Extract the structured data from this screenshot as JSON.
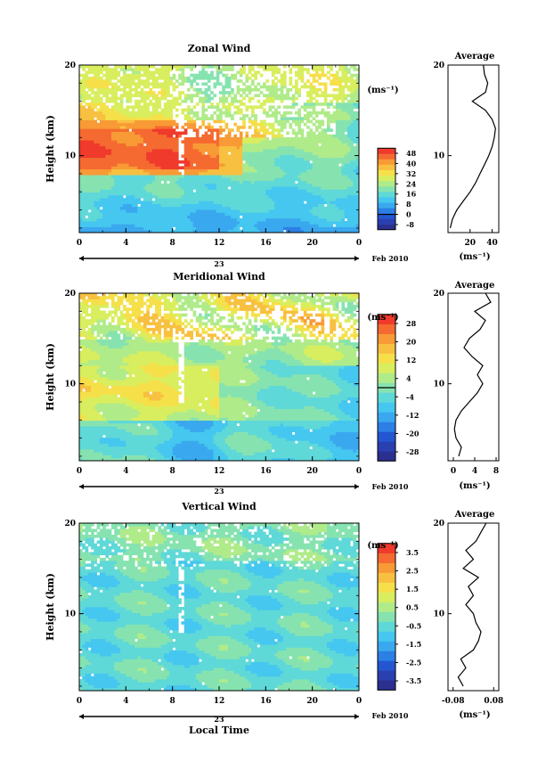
{
  "labels": {
    "cbar_unit": "(ms⁻¹)",
    "avg_unit": "(ms⁻¹)",
    "date_day": "23",
    "date_month": "Feb 2010",
    "x_axis_title": "Local Time",
    "y_axis_title": "Height (km)"
  },
  "colorscale": [
    "#2b2f8f",
    "#2a3fb0",
    "#2356d0",
    "#2c7fe4",
    "#3aa8ee",
    "#45c7f0",
    "#5fd8d8",
    "#86e3b0",
    "#b0eb8a",
    "#d9ee5e",
    "#f5e04a",
    "#f8c040",
    "#f89a35",
    "#f56a30",
    "#ef3a2c"
  ],
  "chart_data": [
    {
      "type": "heatmap",
      "title": "Zonal Wind",
      "x_ticks": [
        "0",
        "4",
        "8",
        "12",
        "16",
        "20",
        "0"
      ],
      "xlim": [
        0,
        24
      ],
      "y_ticks": [
        "10",
        "20"
      ],
      "ylim": [
        1.5,
        20
      ],
      "colorbar_ticks": [
        "48",
        "40",
        "32",
        "24",
        "16",
        "8",
        "0",
        "-8"
      ],
      "colorbar_range": [
        -12,
        52
      ],
      "contour_level": 0,
      "profile": {
        "title": "Average",
        "x_ticks": [
          "20",
          "40"
        ],
        "xlim": [
          0,
          46
        ],
        "heights": [
          2,
          3,
          4,
          5,
          6,
          7,
          8,
          9,
          10,
          11,
          12,
          13,
          14,
          15,
          16,
          17,
          18,
          19,
          20
        ],
        "values": [
          2,
          4,
          8,
          14,
          20,
          25,
          29,
          33,
          37,
          40,
          42,
          43,
          40,
          34,
          22,
          34,
          36,
          33,
          32
        ]
      }
    },
    {
      "type": "heatmap",
      "title": "Meridional Wind",
      "x_ticks": [
        "0",
        "4",
        "8",
        "12",
        "16",
        "20",
        "0"
      ],
      "xlim": [
        0,
        24
      ],
      "y_ticks": [
        "10",
        "20"
      ],
      "ylim": [
        1.5,
        20
      ],
      "colorbar_ticks": [
        "28",
        "20",
        "12",
        "4",
        "-4",
        "-12",
        "-20",
        "-28"
      ],
      "colorbar_range": [
        -32,
        32
      ],
      "contour_level": 0,
      "profile": {
        "title": "Average",
        "x_ticks": [
          "0",
          "4",
          "8"
        ],
        "xlim": [
          -1,
          8.5
        ],
        "heights": [
          2,
          3,
          4,
          5,
          6,
          7,
          8,
          9,
          10,
          11,
          12,
          13,
          14,
          15,
          16,
          17,
          18,
          19,
          20
        ],
        "values": [
          1,
          1.5,
          0.5,
          0.2,
          0.5,
          1.5,
          3,
          4.5,
          5.5,
          4.5,
          5.5,
          3.5,
          2,
          3,
          5,
          6,
          4,
          7,
          6
        ]
      }
    },
    {
      "type": "heatmap",
      "title": "Vertical Wind",
      "x_ticks": [
        "0",
        "4",
        "8",
        "12",
        "16",
        "20",
        "0"
      ],
      "xlim": [
        0,
        24
      ],
      "y_ticks": [
        "10",
        "20"
      ],
      "ylim": [
        1.5,
        20
      ],
      "colorbar_ticks": [
        "3.5",
        "2.5",
        "1.5",
        "0.5",
        "-0.5",
        "-1.5",
        "-2.5",
        "-3.5"
      ],
      "colorbar_range": [
        -4,
        4
      ],
      "profile": {
        "title": "Average",
        "x_ticks": [
          "-0.08",
          "0.08"
        ],
        "xlim": [
          -0.1,
          0.1
        ],
        "heights": [
          2,
          3,
          4,
          5,
          6,
          7,
          8,
          9,
          10,
          11,
          12,
          13,
          14,
          15,
          16,
          17,
          18,
          19,
          20
        ],
        "values": [
          -0.04,
          -0.06,
          -0.03,
          -0.05,
          0.0,
          0.02,
          0.03,
          0.01,
          0.0,
          -0.03,
          0.0,
          -0.02,
          0.02,
          -0.04,
          0.0,
          -0.03,
          0.01,
          0.03,
          0.05
        ]
      }
    }
  ]
}
